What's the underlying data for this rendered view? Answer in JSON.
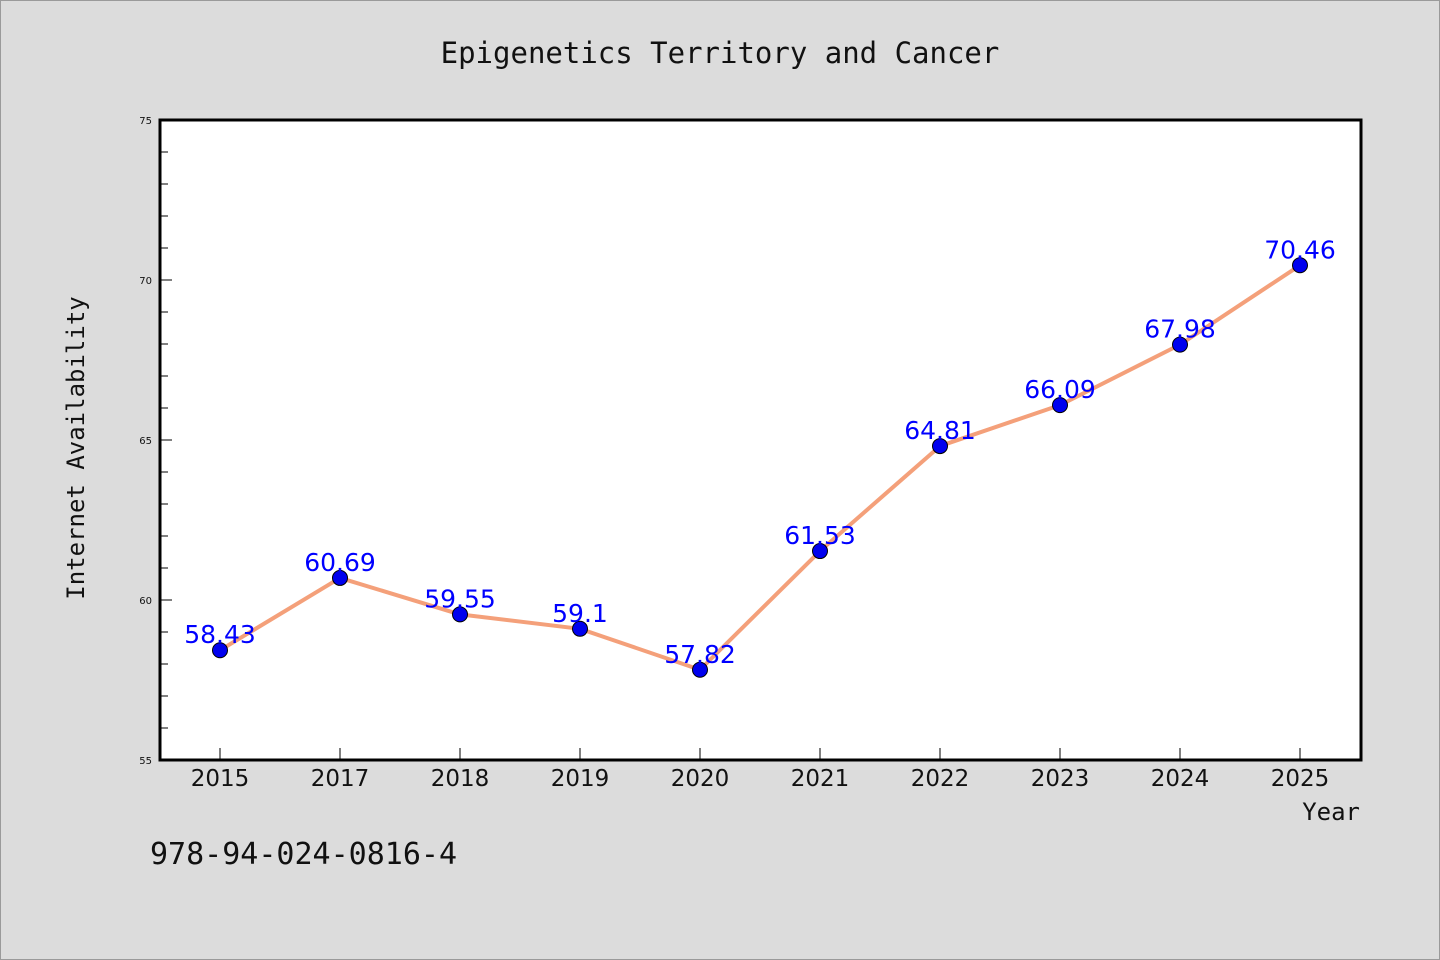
{
  "chart_data": {
    "type": "line",
    "title": "Epigenetics Territory and Cancer",
    "xlabel": "Year",
    "ylabel": "Internet Availability",
    "categories": [
      "2015",
      "2017",
      "2018",
      "2019",
      "2020",
      "2021",
      "2022",
      "2023",
      "2024",
      "2025"
    ],
    "series": [
      {
        "values": [
          58.43,
          60.69,
          59.55,
          59.1,
          57.82,
          61.53,
          64.81,
          66.09,
          67.98,
          70.46
        ],
        "labels": [
          "58.43",
          "60.69",
          "59.55",
          "59.1",
          "57.82",
          "61.53",
          "64.81",
          "66.09",
          "67.98",
          "70.46"
        ],
        "line_color": "#f4a07a",
        "marker_color": "#0000ee",
        "label_color": "#0000ff"
      }
    ],
    "ylim": [
      55,
      75
    ],
    "yticks": [
      "55",
      "60",
      "65",
      "70",
      "75"
    ],
    "grid": false,
    "legend": "none"
  },
  "footer": {
    "isbn": "978-94-024-0816-4"
  }
}
